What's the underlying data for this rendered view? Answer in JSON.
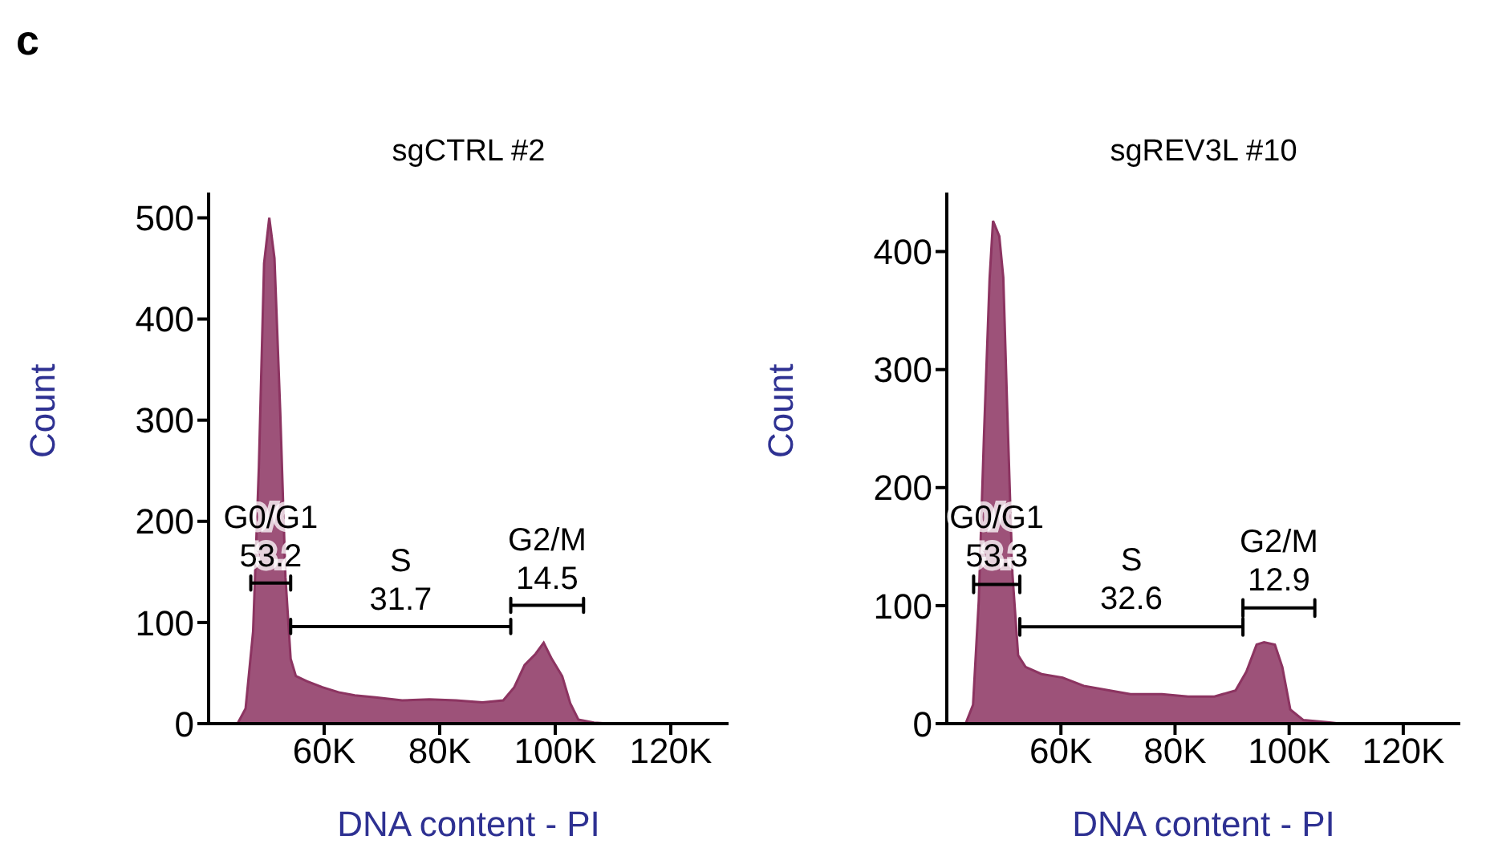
{
  "chart_data": [
    {
      "type": "area",
      "title": "sgCTRL #2",
      "xlabel": "DNA content - PI",
      "ylabel": "Count",
      "xlim": [
        40000,
        130000
      ],
      "ylim": [
        0,
        525
      ],
      "xticks": [
        {
          "value": 60000,
          "label": "60K"
        },
        {
          "value": 80000,
          "label": "80K"
        },
        {
          "value": 100000,
          "label": "100K"
        },
        {
          "value": 120000,
          "label": "120K"
        }
      ],
      "yticks": [
        0,
        100,
        200,
        300,
        400,
        500
      ],
      "grid": false,
      "legend": false,
      "series": [
        {
          "color": "#8c3461",
          "x": [
            45000,
            46400,
            47700,
            48700,
            49600,
            50500,
            51400,
            52400,
            53300,
            54200,
            55100,
            57000,
            59700,
            62500,
            65300,
            68900,
            73500,
            78200,
            82800,
            87400,
            91000,
            92900,
            94700,
            96600,
            98000,
            99400,
            101200,
            102600,
            104000,
            106700,
            109500,
            130000
          ],
          "values": [
            0,
            15,
            91,
            254,
            455,
            500,
            460,
            308,
            145,
            64,
            47,
            42,
            36,
            31,
            28,
            26,
            23,
            24,
            23,
            21,
            23,
            36,
            58,
            69,
            80,
            64,
            47,
            20,
            4,
            1,
            0,
            0
          ]
        },
        {
          "type": "line",
          "name": "G0/G1",
          "color": "#000000",
          "x": [
            47300,
            47300,
            47300,
            54200,
            54200,
            54200
          ],
          "values": [
            146,
            132,
            139,
            139,
            146,
            132
          ]
        },
        {
          "type": "line",
          "name": "S",
          "color": "#000000",
          "x": [
            54200,
            54200,
            54200,
            92300,
            92300,
            92300
          ],
          "values": [
            103,
            89,
            96,
            96,
            103,
            89
          ]
        },
        {
          "type": "line",
          "name": "G2/M",
          "color": "#000000",
          "x": [
            92300,
            92300,
            92300,
            104900,
            104900,
            104900
          ],
          "values": [
            124,
            110,
            117,
            117,
            124,
            110
          ]
        }
      ],
      "annotations": [
        "53.2",
        "31.7",
        "14.5",
        "c"
      ]
    },
    {
      "type": "area",
      "title": "sgREV3L #10",
      "xlabel": "DNA content - PI",
      "ylabel": "Count",
      "xlim": [
        40000,
        130000
      ],
      "ylim": [
        0,
        450
      ],
      "xticks": [
        {
          "value": 60000,
          "label": "60K"
        },
        {
          "value": 80000,
          "label": "80K"
        },
        {
          "value": 100000,
          "label": "100K"
        },
        {
          "value": 120000,
          "label": "120K"
        }
      ],
      "yticks": [
        0,
        100,
        200,
        300,
        400
      ],
      "grid": false,
      "legend": false,
      "series": [
        {
          "color": "#8c3461",
          "x": [
            43300,
            44600,
            45600,
            46500,
            47500,
            48100,
            49200,
            49900,
            50600,
            51500,
            52500,
            53800,
            56600,
            60300,
            64000,
            68600,
            72200,
            77700,
            82300,
            86900,
            90600,
            92500,
            94300,
            95600,
            97500,
            98800,
            100200,
            102500,
            107100,
            109000,
            130000
          ],
          "values": [
            0,
            16,
            104,
            242,
            377,
            426,
            413,
            378,
            265,
            127,
            58,
            48,
            42,
            39,
            32,
            28,
            25,
            25,
            23,
            23,
            28,
            44,
            67,
            69,
            67,
            48,
            12,
            3,
            1,
            0,
            0
          ]
        },
        {
          "type": "line",
          "name": "G0/G1",
          "color": "#000000",
          "x": [
            44700,
            44700,
            44700,
            52800,
            52800,
            52800
          ],
          "values": [
            125,
            111,
            118,
            118,
            125,
            111
          ]
        },
        {
          "type": "line",
          "name": "S",
          "color": "#000000",
          "x": [
            52800,
            52800,
            52800,
            91900,
            91900,
            91900
          ],
          "values": [
            89,
            75,
            82,
            82,
            89,
            75
          ]
        },
        {
          "type": "line",
          "name": "G2/M",
          "color": "#000000",
          "x": [
            91900,
            91900,
            91900,
            104500,
            104500,
            104500
          ],
          "values": [
            105,
            91,
            98,
            98,
            105,
            91
          ]
        }
      ],
      "annotations": [
        "53.3",
        "32.6",
        "12.9"
      ]
    }
  ]
}
